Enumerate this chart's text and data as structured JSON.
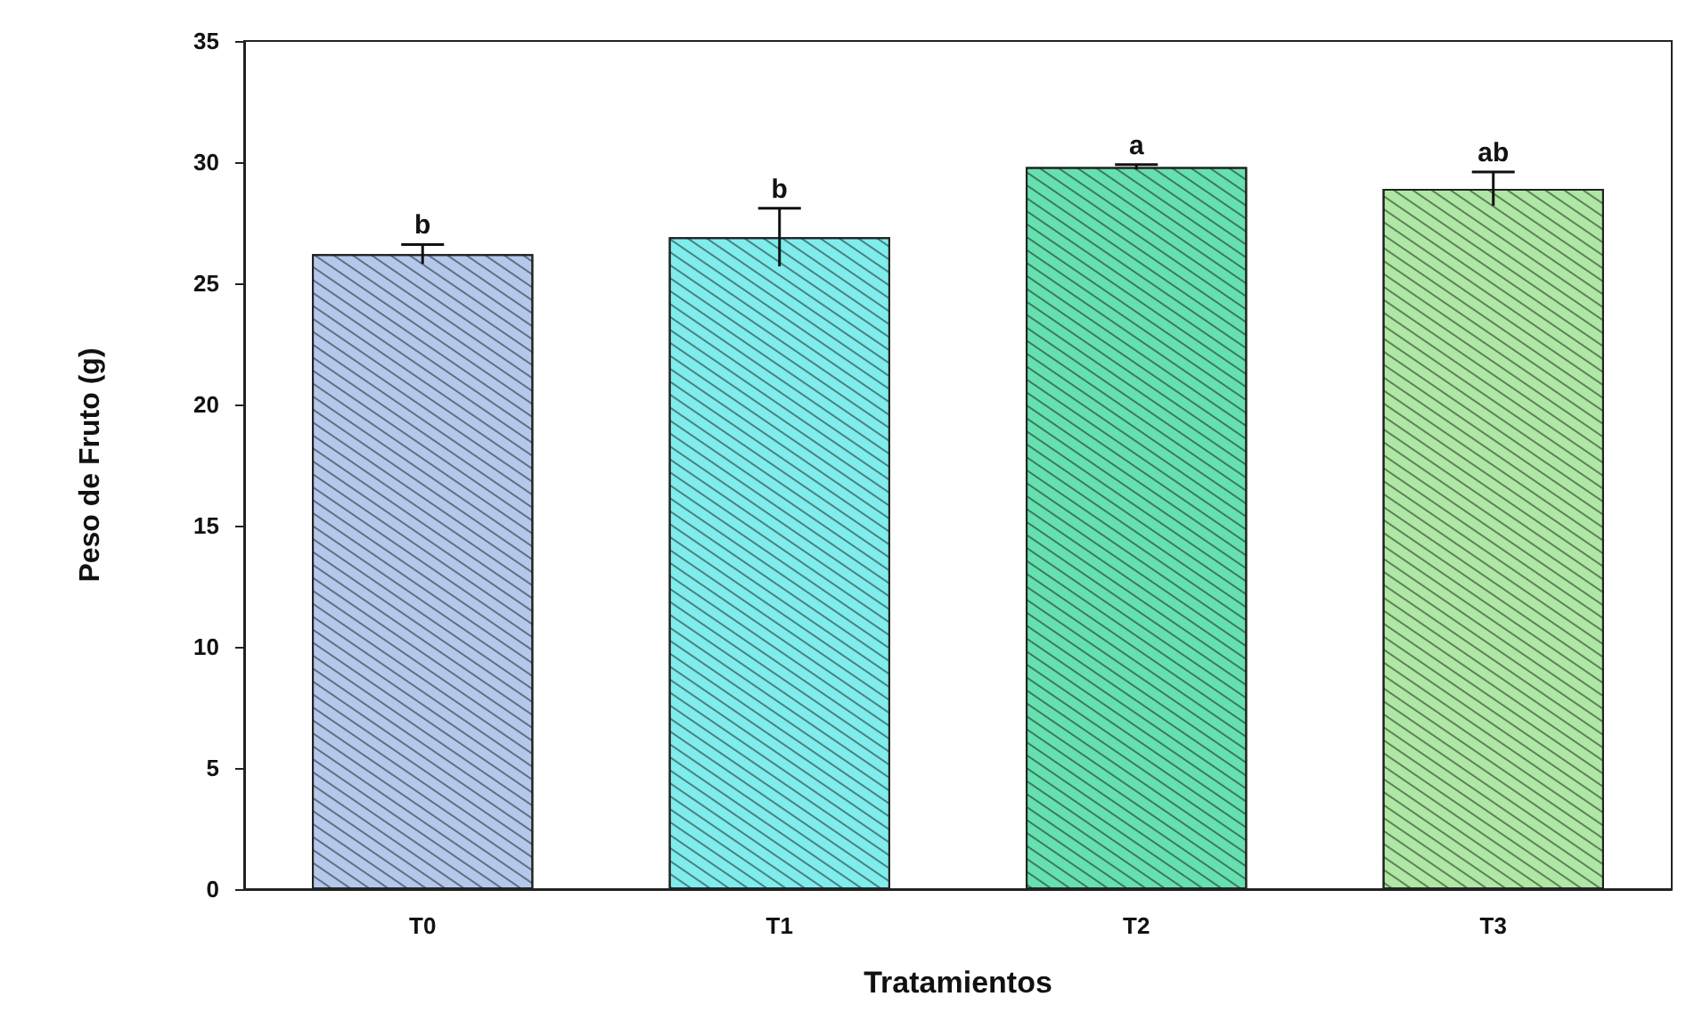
{
  "chart_data": {
    "type": "bar",
    "xlabel": "Tratamientos",
    "ylabel": "Peso de Fruto (g)",
    "categories": [
      "T0",
      "T1",
      "T2",
      "T3"
    ],
    "values": [
      26.2,
      26.9,
      29.8,
      28.9
    ],
    "errors": [
      0.4,
      1.2,
      0.1,
      0.7
    ],
    "colors": [
      "#b4c8ec",
      "#80ecec",
      "#66e0b0",
      "#aee8a4"
    ],
    "ylim": [
      0,
      35
    ],
    "yticks": [
      0,
      5,
      10,
      15,
      20,
      25,
      30,
      35
    ],
    "grid": false,
    "annotations": [
      {
        "text": "b",
        "x": "T0",
        "y": 26.6
      },
      {
        "text": "b",
        "x": "T1",
        "y": 28.1
      },
      {
        "text": "a",
        "x": "T2",
        "y": 29.9
      },
      {
        "text": "ab",
        "x": "T3",
        "y": 29.6
      }
    ]
  }
}
